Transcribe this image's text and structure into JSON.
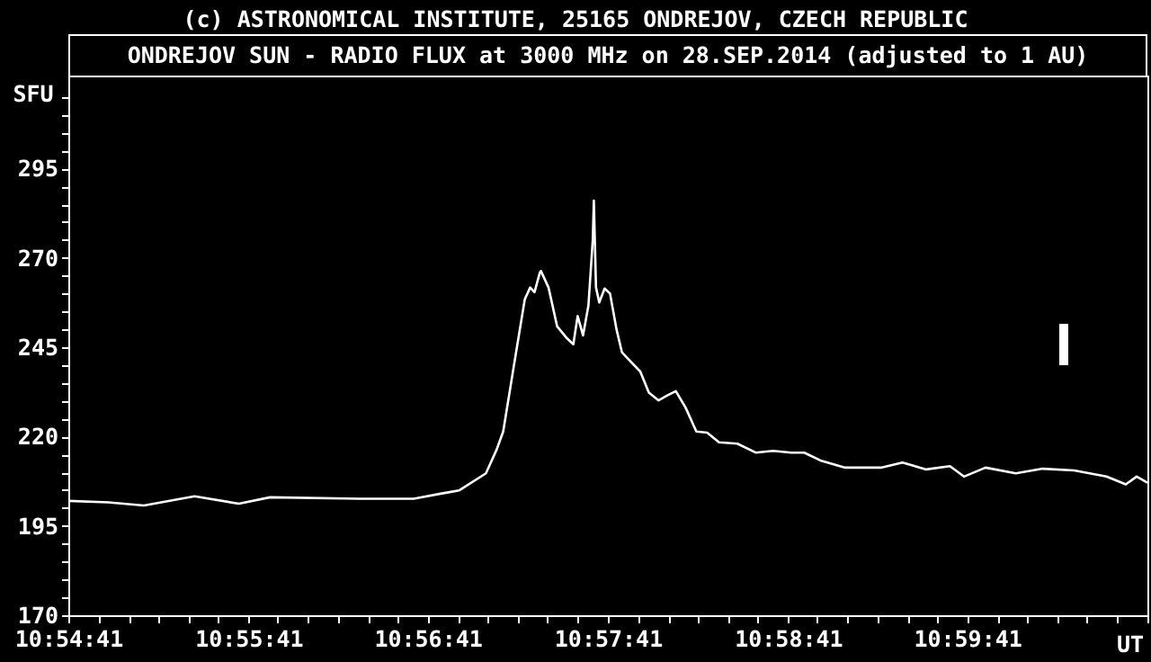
{
  "chart_data": {
    "type": "line",
    "title": "ONDREJOV SUN - RADIO FLUX at 3000 MHz on 28.SEP.2014 (adjusted to 1 AU)",
    "annotations": [
      "(c) ASTRONOMICAL INSTITUTE, 25165 ONDREJOV, CZECH REPUBLIC"
    ],
    "xlabel": "UT",
    "ylabel": "SFU",
    "x": [
      10.9114,
      10.9151,
      10.9184,
      10.9231,
      10.9272,
      10.9301,
      10.9384,
      10.9434,
      10.9459,
      10.9476,
      10.9501,
      10.9511,
      10.9517,
      10.9527,
      10.9537,
      10.9542,
      10.9546,
      10.9551,
      10.9552,
      10.9559,
      10.9567,
      10.9576,
      10.9582,
      10.9586,
      10.9591,
      10.9596,
      10.96,
      10.9601,
      10.9603,
      10.9606,
      10.9611,
      10.9616,
      10.9622,
      10.9627,
      10.9636,
      10.9644,
      10.9652,
      10.9661,
      10.9669,
      10.9677,
      10.9686,
      10.9696,
      10.9706,
      10.9717,
      10.9734,
      10.9751,
      10.9767,
      10.9784,
      10.9796,
      10.9811,
      10.9834,
      10.9867,
      10.9887,
      10.9909,
      10.9931,
      10.9944,
      10.9964,
      10.9992,
      11.0017,
      11.0046,
      11.0076,
      11.0094,
      11.0104,
      11.0114
    ],
    "series": [
      {
        "color": "#ffffff",
        "values": [
          202,
          201.6,
          200.7,
          203.3,
          201.2,
          203,
          202.6,
          202.6,
          204,
          204.9,
          209.7,
          216.4,
          221.4,
          240,
          258.4,
          261.7,
          260.4,
          265.9,
          266.3,
          261.7,
          250.8,
          247.5,
          245.8,
          253.7,
          248.3,
          256.7,
          275,
          286,
          261.7,
          257.5,
          261.4,
          260,
          250,
          243.6,
          240.7,
          238.2,
          232.3,
          230.1,
          231.5,
          232.7,
          228.1,
          221.4,
          221.1,
          218.4,
          218,
          215.5,
          216,
          215.5,
          215.5,
          213.3,
          211.3,
          211.3,
          212.7,
          210.8,
          211.7,
          208.8,
          211.3,
          209.7,
          211,
          210.5,
          208.8,
          206.6,
          208.8,
          207.1
        ]
      }
    ],
    "xlim": [
      10.9114,
      11.0114
    ],
    "xticks": [
      {
        "value": 10.9114,
        "label": "10:54:41"
      },
      {
        "value": 10.9142,
        "label": null
      },
      {
        "value": 10.917,
        "label": null
      },
      {
        "value": 10.9197,
        "label": null
      },
      {
        "value": 10.9225,
        "label": null
      },
      {
        "value": 10.9253,
        "label": null
      },
      {
        "value": 10.9281,
        "label": "10:55:41"
      },
      {
        "value": 10.9308,
        "label": null
      },
      {
        "value": 10.9336,
        "label": null
      },
      {
        "value": 10.9364,
        "label": null
      },
      {
        "value": 10.9392,
        "label": null
      },
      {
        "value": 10.9419,
        "label": null
      },
      {
        "value": 10.9447,
        "label": "10:56:41"
      },
      {
        "value": 10.9475,
        "label": null
      },
      {
        "value": 10.9503,
        "label": null
      },
      {
        "value": 10.9531,
        "label": null
      },
      {
        "value": 10.9558,
        "label": null
      },
      {
        "value": 10.9586,
        "label": null
      },
      {
        "value": 10.9614,
        "label": "10:57:41"
      },
      {
        "value": 10.9642,
        "label": null
      },
      {
        "value": 10.967,
        "label": null
      },
      {
        "value": 10.9697,
        "label": null
      },
      {
        "value": 10.9725,
        "label": null
      },
      {
        "value": 10.9753,
        "label": null
      },
      {
        "value": 10.9781,
        "label": "10:58:41"
      },
      {
        "value": 10.9808,
        "label": null
      },
      {
        "value": 10.9836,
        "label": null
      },
      {
        "value": 10.9864,
        "label": null
      },
      {
        "value": 10.9892,
        "label": null
      },
      {
        "value": 10.9919,
        "label": null
      },
      {
        "value": 10.9947,
        "label": "10:59:41"
      },
      {
        "value": 10.9975,
        "label": null
      },
      {
        "value": 11.0003,
        "label": null
      },
      {
        "value": 11.0031,
        "label": null
      },
      {
        "value": 11.0058,
        "label": null
      },
      {
        "value": 11.0086,
        "label": null
      },
      {
        "value": 11.0114,
        "label": null
      }
    ],
    "ylim": [
      170,
      321
    ],
    "yticks": [
      170,
      {
        "value": 175,
        "label": null
      },
      {
        "value": 180,
        "label": null
      },
      {
        "value": 185,
        "label": null
      },
      {
        "value": 190,
        "label": null
      },
      195,
      {
        "value": 200,
        "label": null
      },
      {
        "value": 205,
        "label": null
      },
      {
        "value": 210,
        "label": null
      },
      {
        "value": 215,
        "label": null
      },
      220,
      {
        "value": 225,
        "label": null
      },
      {
        "value": 230,
        "label": null
      },
      {
        "value": 235,
        "label": null
      },
      {
        "value": 240,
        "label": null
      },
      245,
      {
        "value": 250,
        "label": null
      },
      {
        "value": 255,
        "label": null
      },
      {
        "value": 260,
        "label": null
      },
      {
        "value": 265,
        "label": null
      },
      270,
      {
        "value": 275,
        "label": null
      },
      {
        "value": 280,
        "label": null
      },
      {
        "value": 285,
        "label": null
      },
      {
        "value": 290,
        "label": null
      },
      295,
      {
        "value": 300,
        "label": null
      },
      {
        "value": 305,
        "label": null
      },
      {
        "value": 310,
        "label": null
      },
      {
        "value": 315,
        "label": null
      }
    ],
    "grid": false,
    "marker": "none",
    "line_style": "solid"
  }
}
